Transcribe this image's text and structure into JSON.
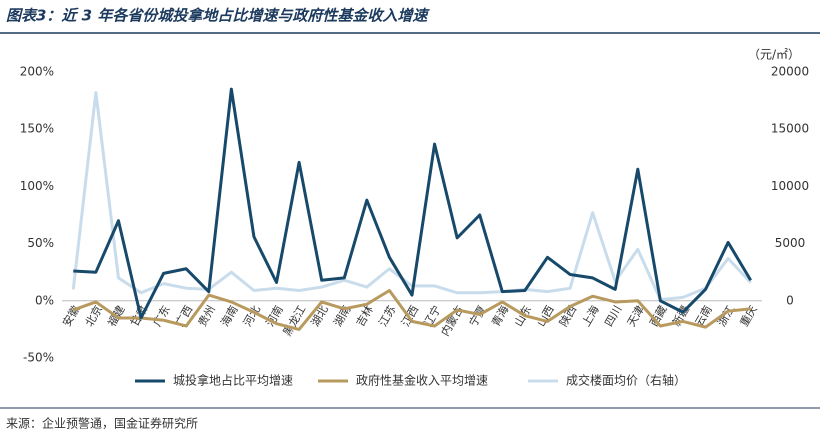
{
  "chart_data": {
    "type": "line",
    "title": "图表3：近 3 年各省份城投拿地占比增速与政府性基金收入增速",
    "source": "来源：企业预警通，国金证券研究所",
    "y2label": "（元/㎡）",
    "categories": [
      "安徽",
      "北京",
      "福建",
      "甘肃",
      "广东",
      "广西",
      "贵州",
      "海南",
      "河北",
      "河南",
      "黑龙江",
      "湖北",
      "湖南",
      "吉林",
      "江苏",
      "江西",
      "辽宁",
      "内蒙古",
      "宁夏",
      "青海",
      "山东",
      "山西",
      "陕西",
      "上海",
      "四川",
      "天津",
      "西藏",
      "新疆",
      "云南",
      "浙江",
      "重庆"
    ],
    "series": [
      {
        "name": "城投拿地占比平均增速",
        "color": "#17496b",
        "values": [
          26,
          25,
          70,
          -15,
          24,
          28,
          8,
          185,
          56,
          16,
          121,
          18,
          20,
          88,
          38,
          5,
          137,
          55,
          75,
          8,
          9,
          38,
          23,
          20,
          10,
          115,
          0,
          -10,
          10,
          51,
          18
        ]
      },
      {
        "name": "政府性基金收入平均增速",
        "color": "#b89a5e",
        "values": [
          -8,
          -1,
          -15,
          -15,
          -17,
          -22,
          5,
          -1,
          -10,
          -20,
          -25,
          -1,
          -7,
          -3,
          9,
          -18,
          -22,
          -8,
          -12,
          -1,
          -13,
          -18,
          -5,
          4,
          -1,
          0,
          -22,
          -18,
          -23,
          -9,
          -7
        ]
      },
      {
        "name": "成交楼面均价（右轴）",
        "color": "#c9dcec",
        "axis": "y2",
        "values": [
          1000,
          18200,
          2000,
          700,
          1500,
          1100,
          1000,
          2500,
          900,
          1100,
          900,
          1200,
          1800,
          1200,
          2800,
          1300,
          1300,
          700,
          700,
          800,
          1000,
          800,
          1100,
          7700,
          1700,
          4500,
          100,
          300,
          1100,
          3700,
          1600
        ]
      }
    ],
    "ylim": [
      -50,
      200
    ],
    "yticks": [
      {
        "value": -50,
        "label": "-50%"
      },
      {
        "value": 0,
        "label": "0%"
      },
      {
        "value": 50,
        "label": "50%"
      },
      {
        "value": 100,
        "label": "100%"
      },
      {
        "value": 150,
        "label": "150%"
      },
      {
        "value": 200,
        "label": "200%"
      }
    ],
    "y2lim": [
      -5000,
      20000
    ],
    "y2ticks": [
      0,
      5000,
      10000,
      15000,
      20000
    ]
  }
}
